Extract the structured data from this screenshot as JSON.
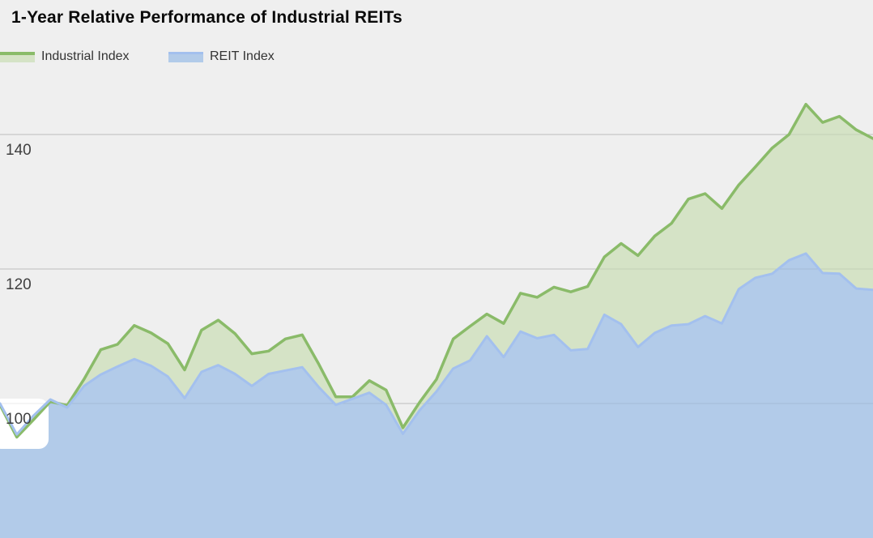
{
  "title": "1-Year Relative Performance of Industrial REITs",
  "legend": {
    "items": [
      {
        "label": "Industrial Index",
        "series": "industrial",
        "swatch": "green-area-swatch-icon"
      },
      {
        "label": "REIT Index",
        "series": "reit",
        "swatch": "blue-area-swatch-icon"
      }
    ]
  },
  "y_axis": {
    "ticks": [
      140,
      120,
      100
    ],
    "tick_labels": [
      "140",
      "120",
      "100"
    ]
  },
  "colors": {
    "background": "#efefef",
    "gridline": "#cdcdcd",
    "industrial_line": "#8abb69",
    "industrial_fill": "#d5e3c6",
    "reit_line": "#a3c0ee",
    "reit_fill": "#b2cbe9",
    "title_text": "#0a0a0a",
    "legend_text": "#333333",
    "tick_text": "#3f3f3f",
    "label_halo": "#ffffff"
  },
  "chart_data": {
    "type": "area",
    "title": "1-Year Relative Performance of Industrial REITs",
    "xlabel": "",
    "ylabel": "",
    "x_unit": "week",
    "x_range": [
      0,
      52
    ],
    "x_tick_labels_shown": false,
    "ylim": [
      80,
      160
    ],
    "gridlines": [
      100,
      120,
      140
    ],
    "grid": true,
    "legend_position": "top-left",
    "baseline_value": 100,
    "series": [
      {
        "name": "Industrial Index",
        "values": [
          99.8,
          95.0,
          97.6,
          100.3,
          99.7,
          103.6,
          108.0,
          108.8,
          111.6,
          110.5,
          108.9,
          105.0,
          110.9,
          112.4,
          110.4,
          107.4,
          107.8,
          109.6,
          110.2,
          105.8,
          101.0,
          101.0,
          103.4,
          102.0,
          96.4,
          100.2,
          103.6,
          109.6,
          111.5,
          113.3,
          111.9,
          116.4,
          115.8,
          117.3,
          116.6,
          117.4,
          121.8,
          123.8,
          122.0,
          124.9,
          126.8,
          130.4,
          131.2,
          129.0,
          132.5,
          135.2,
          138.0,
          140.0,
          144.5,
          141.8,
          142.7,
          140.7,
          139.4
        ]
      },
      {
        "name": "REIT Index",
        "values": [
          100.0,
          95.4,
          98.2,
          100.6,
          99.4,
          102.6,
          104.3,
          105.5,
          106.6,
          105.6,
          104.0,
          100.8,
          104.7,
          105.7,
          104.4,
          102.6,
          104.4,
          104.9,
          105.4,
          102.4,
          99.8,
          100.7,
          101.6,
          99.8,
          95.5,
          99.0,
          101.8,
          105.2,
          106.4,
          110.0,
          106.9,
          110.7,
          109.7,
          110.2,
          107.9,
          108.1,
          113.2,
          111.8,
          108.4,
          110.5,
          111.6,
          111.8,
          113.0,
          111.9,
          117.0,
          118.7,
          119.3,
          121.3,
          122.3,
          119.4,
          119.3,
          117.1,
          116.9
        ]
      }
    ]
  }
}
